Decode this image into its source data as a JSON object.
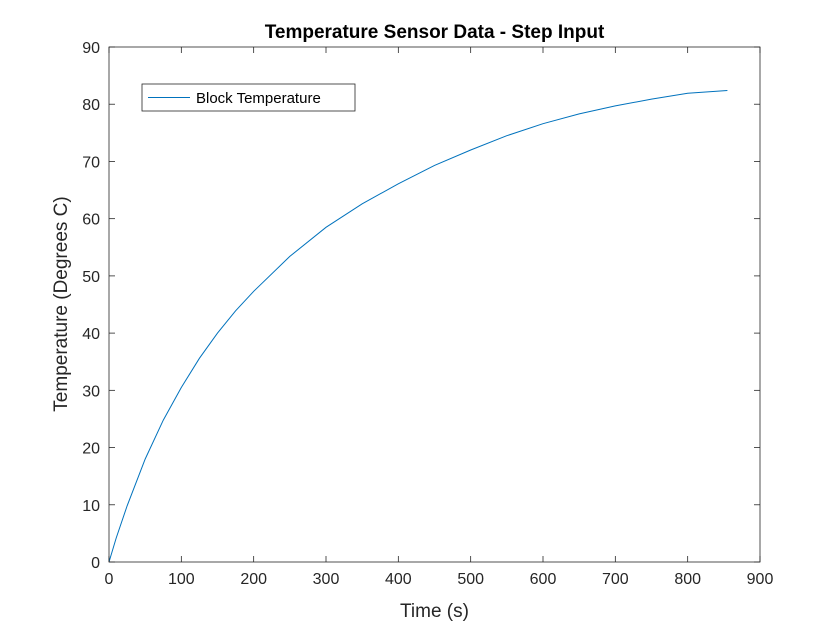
{
  "chart_data": {
    "type": "line",
    "title": "Temperature Sensor Data - Step Input",
    "xlabel": "Time (s)",
    "ylabel": "Temperature (Degrees C)",
    "xlim": [
      0,
      900
    ],
    "ylim": [
      0,
      90
    ],
    "xticks": [
      0,
      100,
      200,
      300,
      400,
      500,
      600,
      700,
      800,
      900
    ],
    "yticks": [
      0,
      10,
      20,
      30,
      40,
      50,
      60,
      70,
      80,
      90
    ],
    "grid": false,
    "legend_position": "top-left",
    "series": [
      {
        "name": "Block Temperature",
        "color": "#0072BD",
        "x": [
          0,
          10,
          25,
          50,
          75,
          100,
          125,
          150,
          175,
          200,
          250,
          300,
          350,
          400,
          450,
          500,
          550,
          600,
          650,
          700,
          750,
          800,
          855
        ],
        "y": [
          0,
          4.2,
          9.8,
          18.0,
          24.8,
          30.5,
          35.6,
          40.0,
          43.9,
          47.3,
          53.4,
          58.5,
          62.6,
          66.1,
          69.3,
          72.0,
          74.5,
          76.6,
          78.3,
          79.7,
          80.9,
          81.9,
          82.4
        ]
      }
    ]
  }
}
